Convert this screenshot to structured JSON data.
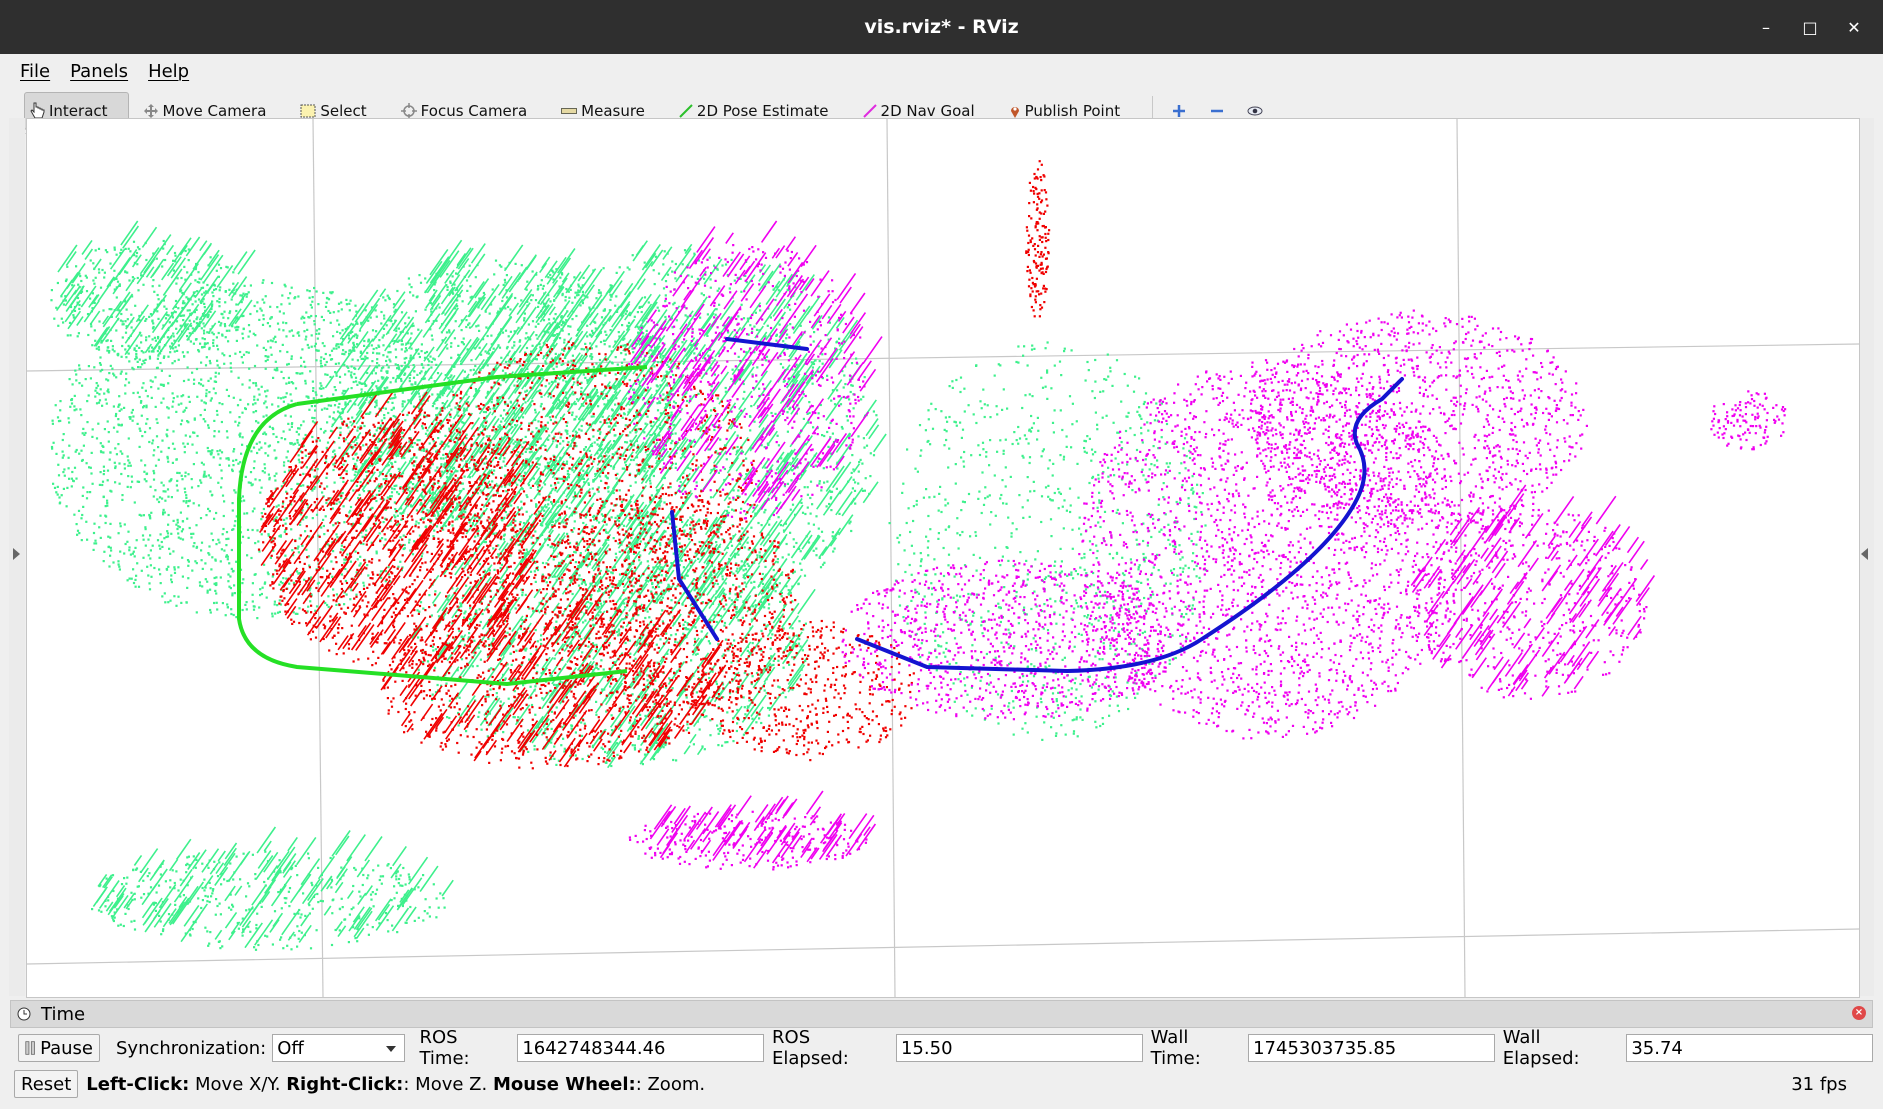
{
  "window": {
    "title": "vis.rviz* - RViz",
    "controls": [
      "–",
      "□",
      "✕"
    ]
  },
  "menu": {
    "items": [
      "File",
      "Panels",
      "Help"
    ]
  },
  "toolbar": {
    "tools": [
      {
        "label": "Interact",
        "icon": "hand-pointer-icon",
        "active": true
      },
      {
        "label": "Move Camera",
        "icon": "move-camera-icon"
      },
      {
        "label": "Select",
        "icon": "select-box-icon"
      },
      {
        "label": "Focus Camera",
        "icon": "focus-camera-icon"
      },
      {
        "label": "Measure",
        "icon": "ruler-icon"
      },
      {
        "label": "2D Pose Estimate",
        "icon": "green-arrow-icon"
      },
      {
        "label": "2D Nav Goal",
        "icon": "magenta-arrow-icon"
      },
      {
        "label": "Publish Point",
        "icon": "map-pin-icon"
      }
    ],
    "extra_icons": [
      "add-tool-icon",
      "remove-tool-icon",
      "camera-view-icon"
    ]
  },
  "viewport": {
    "description_colors": {
      "green_cloud": "#3df08c",
      "red_cloud": "#f00000",
      "magenta_cloud": "#f000f0",
      "trajectory_blue": "#1010e0",
      "trajectory_green": "#25e025",
      "grid": "#c8c8c8"
    }
  },
  "time_panel": {
    "title": "Time",
    "pause_label": "Pause",
    "sync_label": "Synchronization:",
    "sync_value": "Off",
    "ros_time_label": "ROS Time:",
    "ros_time_value": "1642748344.46",
    "ros_elapsed_label": "ROS Elapsed:",
    "ros_elapsed_value": "15.50",
    "wall_time_label": "Wall Time:",
    "wall_time_value": "1745303735.85",
    "wall_elapsed_label": "Wall Elapsed:",
    "wall_elapsed_value": "35.74"
  },
  "status_bar": {
    "reset_label": "Reset",
    "left_click_label": "Left-Click:",
    "left_click_text": " Move X/Y. ",
    "right_click_label": "Right-Click:",
    "right_click_text": ": Move Z. ",
    "wheel_label": "Mouse Wheel:",
    "wheel_text": ": Zoom.",
    "fps": "31 fps"
  }
}
